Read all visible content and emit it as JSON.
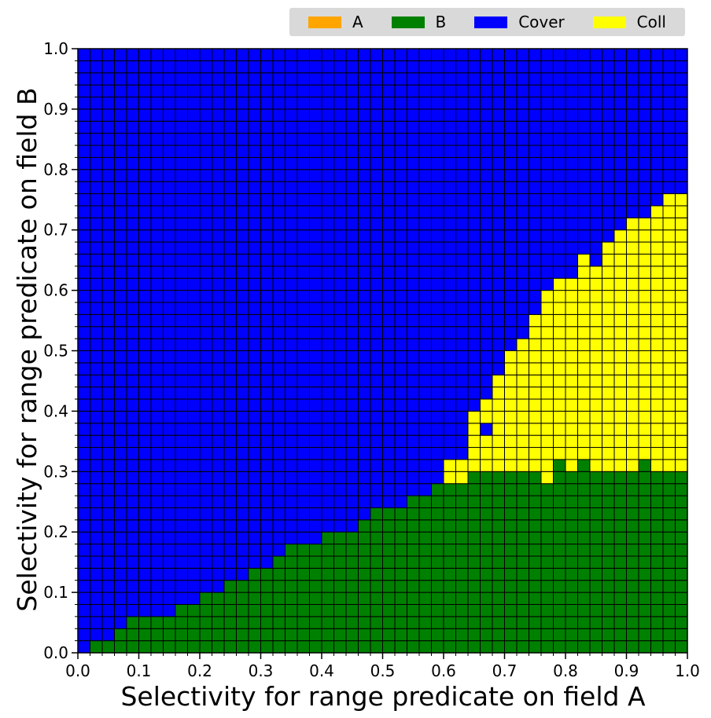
{
  "chart_data": {
    "type": "heatmap",
    "title": "",
    "xlabel": "Selectivity for range predicate on field A",
    "ylabel": "Selectivity for range predicate on field B",
    "xlim": [
      0.0,
      1.0
    ],
    "ylim": [
      0.0,
      1.0
    ],
    "x_ticks": [
      "0.0",
      "0.1",
      "0.2",
      "0.3",
      "0.4",
      "0.5",
      "0.6",
      "0.7",
      "0.8",
      "0.9",
      "1.0"
    ],
    "y_ticks": [
      "0.0",
      "0.1",
      "0.2",
      "0.3",
      "0.4",
      "0.5",
      "0.6",
      "0.7",
      "0.8",
      "0.9",
      "1.0"
    ],
    "grid_step": 0.02,
    "grid": true,
    "legend_position": "top-right, above plot",
    "legend": [
      {
        "name": "A",
        "color": "#ffa500"
      },
      {
        "name": "B",
        "color": "#008000"
      },
      {
        "name": "Cover",
        "color": "#0000ff"
      },
      {
        "name": "Coll",
        "color": "#ffff00"
      }
    ],
    "green_boundary": [
      0.0,
      0.02,
      0.02,
      0.04,
      0.06,
      0.06,
      0.06,
      0.06,
      0.08,
      0.08,
      0.1,
      0.1,
      0.12,
      0.12,
      0.14,
      0.14,
      0.16,
      0.18,
      0.18,
      0.18,
      0.2,
      0.2,
      0.2,
      0.22,
      0.24,
      0.24,
      0.24,
      0.26,
      0.26,
      0.28,
      0.28,
      0.28,
      0.3,
      0.3,
      0.3,
      0.3,
      0.3,
      0.3,
      0.28,
      0.3,
      0.3,
      0.3,
      0.3,
      0.3,
      0.3,
      0.3,
      0.3,
      0.3,
      0.3,
      0.3
    ],
    "coll_top": [
      0,
      0,
      0,
      0,
      0,
      0,
      0,
      0,
      0,
      0,
      0,
      0,
      0,
      0,
      0,
      0,
      0,
      0,
      0,
      0,
      0,
      0,
      0,
      0,
      0,
      0,
      0,
      0,
      0,
      0,
      0.32,
      0.32,
      0.4,
      0.42,
      0.46,
      0.5,
      0.52,
      0.56,
      0.6,
      0.62,
      0.62,
      0.66,
      0.64,
      0.68,
      0.7,
      0.72,
      0.72,
      0.74,
      0.76,
      0.76
    ],
    "special_cells": [
      {
        "x": 0.66,
        "y": 0.36,
        "class": "Cover"
      },
      {
        "x": 0.84,
        "y": 0.64,
        "class": "Cover"
      },
      {
        "x": 0.76,
        "y": 0.28,
        "class": "Coll"
      },
      {
        "x": 0.78,
        "y": 0.3,
        "class": "B"
      },
      {
        "x": 0.82,
        "y": 0.3,
        "class": "B"
      },
      {
        "x": 0.92,
        "y": 0.3,
        "class": "B"
      }
    ]
  }
}
